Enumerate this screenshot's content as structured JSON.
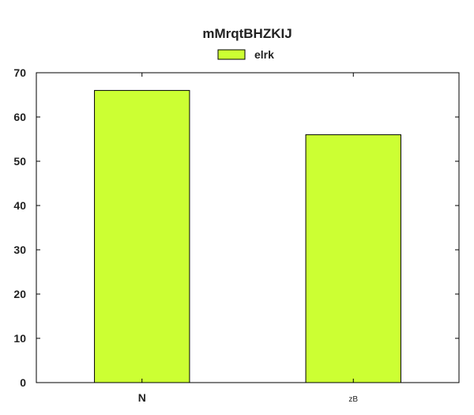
{
  "chart_data": {
    "type": "bar",
    "title": "mMrqtBHZKIJ",
    "categories": [
      "N",
      "zB"
    ],
    "series": [
      {
        "name": "elrk",
        "values": [
          66,
          56
        ],
        "color": "#ccff33"
      }
    ],
    "xlabel": "",
    "ylabel": "",
    "ylim": [
      0,
      70
    ],
    "yticks": [
      0,
      10,
      20,
      30,
      40,
      50,
      60,
      70
    ],
    "grid": false,
    "legend_position": "top-center",
    "bar_edge_color": "#000000"
  }
}
